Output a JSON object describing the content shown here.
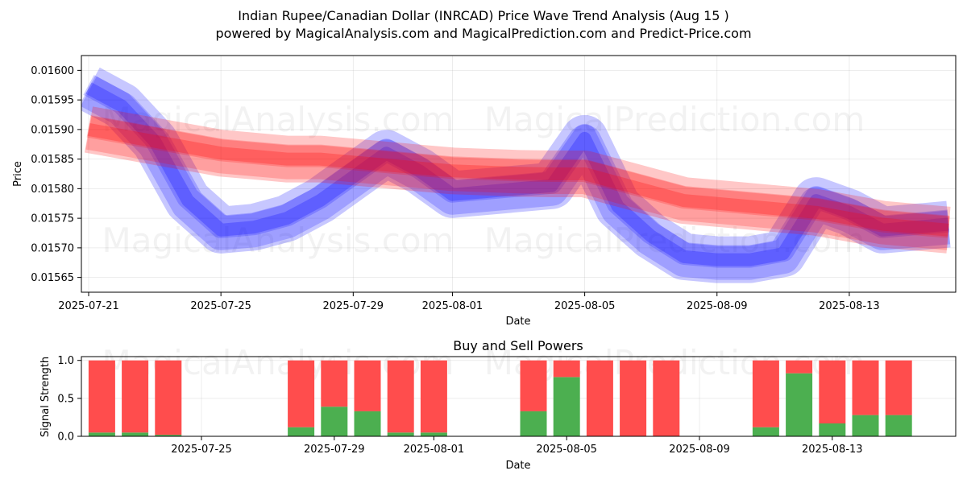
{
  "title_line1": "Indian Rupee/Canadian Dollar (INRCAD) Price Wave Trend Analysis (Aug 15 )",
  "title_line2": "powered by MagicalAnalysis.com and MagicalPrediction.com and Predict-Price.com",
  "watermarks": [
    "MagicalAnalysis.com",
    "MagicalPrediction.com"
  ],
  "colors": {
    "red": "#ff0000",
    "blue": "#0000ff",
    "buy": "#4caf50",
    "sell": "#ff4d4d"
  },
  "chart_data": [
    {
      "type": "area",
      "title": "",
      "xlabel": "Date",
      "ylabel": "Price",
      "xlim": [
        "2025-07-21",
        "2025-08-16"
      ],
      "ylim": [
        0.015625,
        0.016025
      ],
      "x_ticks": [
        "2025-07-21",
        "2025-07-25",
        "2025-07-29",
        "2025-08-01",
        "2025-08-05",
        "2025-08-09",
        "2025-08-13"
      ],
      "y_ticks": [
        "0.01565",
        "0.01570",
        "0.01575",
        "0.01580",
        "0.01585",
        "0.01590",
        "0.01595",
        "0.01600"
      ],
      "grid": true,
      "series": [
        {
          "color": "red",
          "x": [
            "2025-07-21",
            "2025-07-22",
            "2025-07-23",
            "2025-07-24",
            "2025-07-25",
            "2025-07-26",
            "2025-07-27",
            "2025-07-28",
            "2025-07-29",
            "2025-07-30",
            "2025-07-31",
            "2025-08-01",
            "2025-08-02",
            "2025-08-03",
            "2025-08-04",
            "2025-08-05",
            "2025-08-06",
            "2025-08-07",
            "2025-08-08",
            "2025-08-09",
            "2025-08-10",
            "2025-08-11",
            "2025-08-12",
            "2025-08-13",
            "2025-08-14",
            "2025-08-15",
            "2025-08-16"
          ],
          "y": [
            0.0159,
            0.01589,
            0.01588,
            0.01587,
            0.01586,
            0.015855,
            0.01585,
            0.01585,
            0.015845,
            0.01584,
            0.015835,
            0.01583,
            0.015828,
            0.015826,
            0.015825,
            0.015825,
            0.01581,
            0.015795,
            0.01578,
            0.015775,
            0.01577,
            0.015765,
            0.01576,
            0.01575,
            0.01574,
            0.015735,
            0.01573
          ]
        },
        {
          "color": "blue",
          "x": [
            "2025-07-21",
            "2025-07-22",
            "2025-07-23",
            "2025-07-24",
            "2025-07-25",
            "2025-07-26",
            "2025-07-27",
            "2025-07-28",
            "2025-07-29",
            "2025-07-30",
            "2025-07-31",
            "2025-08-01",
            "2025-08-02",
            "2025-08-03",
            "2025-08-04",
            "2025-08-05",
            "2025-08-06",
            "2025-08-07",
            "2025-08-08",
            "2025-08-09",
            "2025-08-10",
            "2025-08-11",
            "2025-08-12",
            "2025-08-13",
            "2025-08-14",
            "2025-08-15",
            "2025-08-16"
          ],
          "y": [
            0.01597,
            0.01594,
            0.01588,
            0.01578,
            0.01573,
            0.015735,
            0.01575,
            0.01578,
            0.01582,
            0.01586,
            0.01583,
            0.01579,
            0.015795,
            0.0158,
            0.015805,
            0.015885,
            0.01577,
            0.01572,
            0.015685,
            0.01568,
            0.01568,
            0.01569,
            0.01578,
            0.01576,
            0.01573,
            0.015735,
            0.01574
          ]
        }
      ]
    },
    {
      "type": "bar",
      "title": "Buy and Sell Powers",
      "xlabel": "Date",
      "ylabel": "Signal Strength",
      "ylim": [
        0,
        1.05
      ],
      "y_ticks": [
        "0.0",
        "0.5",
        "1.0"
      ],
      "x_ticks": [
        "2025-07-25",
        "2025-07-29",
        "2025-08-01",
        "2025-08-05",
        "2025-08-09",
        "2025-08-13"
      ],
      "grid": true,
      "categories": [
        "2025-07-22",
        "2025-07-23",
        "2025-07-24",
        "2025-07-28",
        "2025-07-29",
        "2025-07-30",
        "2025-07-31",
        "2025-08-01",
        "2025-08-04",
        "2025-08-05",
        "2025-08-06",
        "2025-08-07",
        "2025-08-08",
        "2025-08-11",
        "2025-08-12",
        "2025-08-13",
        "2025-08-14",
        "2025-08-15"
      ],
      "series": [
        {
          "color": "buy",
          "values": [
            0.05,
            0.05,
            0.02,
            0.12,
            0.39,
            0.33,
            0.05,
            0.05,
            0.33,
            0.78,
            0.0,
            0.0,
            0.0,
            0.12,
            0.83,
            0.17,
            0.28,
            0.28
          ]
        },
        {
          "color": "sell",
          "values": [
            0.95,
            0.95,
            0.98,
            0.88,
            0.61,
            0.67,
            0.95,
            0.95,
            0.67,
            0.22,
            1.0,
            1.0,
            1.0,
            0.88,
            0.17,
            0.83,
            0.72,
            0.72
          ]
        }
      ]
    }
  ]
}
